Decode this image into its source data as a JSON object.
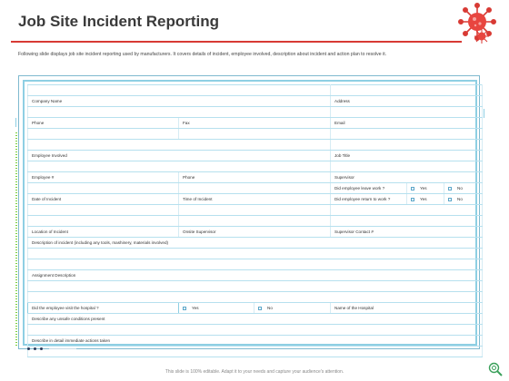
{
  "title": "Job Site Incident Reporting",
  "description": "Following slide displays job site incident reporting used by manufacturers. It covers details of incident, employee involved, description about incident and action plan to resolve it.",
  "colors": {
    "accent_red": "#d83a34",
    "frame_blue": "#8ecfe3",
    "accent_green": "#7ccf3c"
  },
  "form": {
    "company_name": "Company Name",
    "address": "Address",
    "phone": "Phone",
    "fax": "Fax",
    "email": "Email",
    "employee_involved": "Employee Involved",
    "job_title": "Job Title",
    "employee_no": "Employee #",
    "phone2": "Phone",
    "supervisor": "Supervisor",
    "did_employee_leave_work": "Did employee leave work ?",
    "date_of_incident": "Date of Incident",
    "time_of_incident": "Time of Incident",
    "did_employee_return_to_work": "Did employee return to work ?",
    "yes": "Yes",
    "no": "No",
    "location_of_incident": "Location of Incident",
    "onsite_supervisor": "Onsite Supervisor",
    "supervisor_contact": "Supervisor Contact #",
    "description_of_incident": "Description of incident (including any tools, mashinery, materials involved)",
    "assignment_description": "Assignment Description",
    "did_employee_visit_hospital": "Did the employee visit the hospital ?",
    "name_of_hospital": "Name of the Hospital",
    "describe_unsafe_conditions": "Describe any unsafe conditions present",
    "describe_immediate_actions": "Describe in detail immediate actions taken"
  },
  "footer": "This slide is 100% editable. Adapt it to your needs and capture your audience's attention.",
  "icons": [
    "virus-icon",
    "search-settings-icon"
  ]
}
